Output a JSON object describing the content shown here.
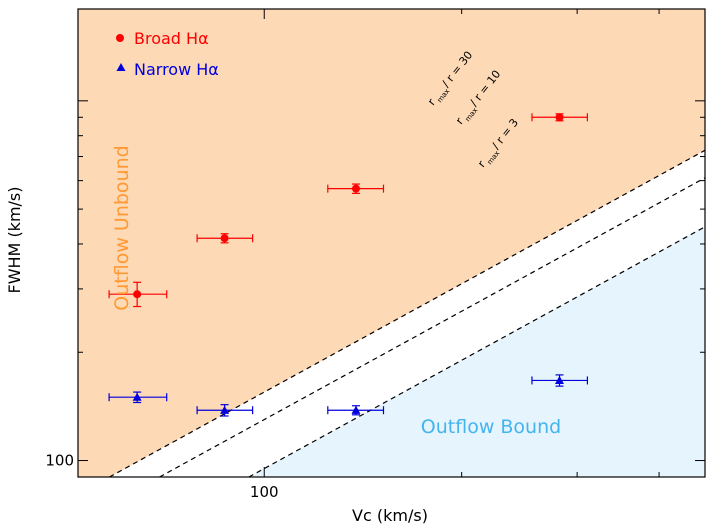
{
  "chart_data": {
    "type": "scatter",
    "xlabel": "Vc (km/s)",
    "ylabel": "FWHM (km/s)",
    "x_scale": "log",
    "y_scale": "log",
    "xlim": [
      52,
      470
    ],
    "ylim": [
      90,
      1800
    ],
    "x_tick_labels": [
      {
        "value": 100,
        "label": "100"
      }
    ],
    "y_tick_labels": [
      {
        "value": 100,
        "label": "100"
      }
    ],
    "x_major_ticks": [
      100
    ],
    "x_minor_ticks": [
      200,
      300,
      400
    ],
    "y_major_ticks": [
      100,
      1000
    ],
    "y_minor_ticks": [
      200,
      300,
      400,
      500,
      600,
      700,
      800,
      900
    ],
    "legend_position": "top-left",
    "series": [
      {
        "name": "Broad Hα",
        "marker": "circle",
        "color": "#ff0000",
        "points": [
          {
            "x": 64,
            "y": 290,
            "x_err": [
              58,
              71
            ],
            "y_err": [
              268,
              313
            ]
          },
          {
            "x": 87,
            "y": 415,
            "x_err": [
              79,
              96
            ],
            "y_err": [
              403,
              427
            ]
          },
          {
            "x": 138,
            "y": 570,
            "x_err": [
              125,
              152
            ],
            "y_err": [
              553,
              587
            ]
          },
          {
            "x": 282,
            "y": 900,
            "x_err": [
              256,
              311
            ],
            "y_err": [
              880,
              920
            ]
          }
        ]
      },
      {
        "name": "Narrow Hα",
        "marker": "triangle",
        "color": "#0000dd",
        "points": [
          {
            "x": 64,
            "y": 150,
            "x_err": [
              58,
              71
            ],
            "y_err": [
              145,
              155
            ]
          },
          {
            "x": 87,
            "y": 138,
            "x_err": [
              79,
              96
            ],
            "y_err": [
              133,
              143
            ]
          },
          {
            "x": 138,
            "y": 138,
            "x_err": [
              125,
              152
            ],
            "y_err": [
              134,
              142
            ]
          },
          {
            "x": 282,
            "y": 167,
            "x_err": [
              256,
              311
            ],
            "y_err": [
              161,
              173
            ]
          }
        ]
      }
    ],
    "reference_lines": [
      {
        "label": "r_max / r = 30",
        "label_main": "r",
        "label_sub": "max",
        "label_rest": " / r = 30",
        "ratio": 1.55
      },
      {
        "label": "r_max / r = 10",
        "label_main": "r",
        "label_sub": "max",
        "label_rest": " / r = 10",
        "ratio": 1.3
      },
      {
        "label": "r_max / r = 3",
        "label_main": "r",
        "label_sub": "max",
        "label_rest": " / r = 3",
        "ratio": 0.95
      }
    ],
    "regions": [
      {
        "label": "Outflow Unbound",
        "color": "#fdd9b5",
        "text_color": "#ff9933",
        "bound_line_ratio": 1.55,
        "side": "above"
      },
      {
        "label": "Outflow Bound",
        "color": "#e6f4fd",
        "text_color": "#44b4ee",
        "bound_line_ratio": 0.95,
        "side": "below"
      }
    ]
  }
}
